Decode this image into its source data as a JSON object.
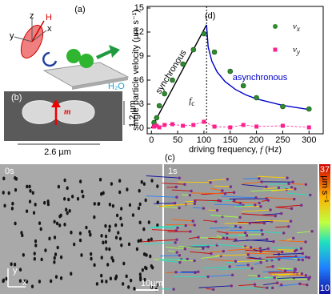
{
  "panel_a": {
    "label": "(a)",
    "axis_x": "x",
    "axis_y": "y",
    "axis_z": "z",
    "field": "H",
    "medium": "H₂O"
  },
  "panel_b": {
    "label": "(b)",
    "moment": "m",
    "height": "1.2 µm",
    "width": "2.6 µm"
  },
  "panel_c": {
    "label": "(c)",
    "frames": [
      "0s",
      "1s"
    ],
    "scale_bar": "10µm",
    "axis_x": "x",
    "axis_y": "y",
    "colorbar": {
      "max": 37,
      "min": 10,
      "unit": "µm s⁻¹"
    }
  },
  "chart_data": {
    "type": "scatter",
    "label": "(d)",
    "xlabel": [
      "driving frequency, ",
      "f",
      " (Hz)"
    ],
    "ylabel": "single particle velocity (µm s⁻¹)",
    "xlim": [
      -8,
      327
    ],
    "xticks": [
      0,
      50,
      100,
      150,
      200,
      250,
      300
    ],
    "ylim": [
      -0.7,
      15.2
    ],
    "yticks": [
      0,
      3,
      6,
      9,
      12,
      15
    ],
    "legend": "upper right",
    "series": [
      {
        "name": "v",
        "name_sub": "x",
        "color": "#2e8b2e",
        "marker": "circle",
        "x": [
          5,
          10,
          15,
          25,
          40,
          60,
          80,
          100,
          120,
          150,
          175,
          200,
          250,
          300
        ],
        "values": [
          0.7,
          1.3,
          2.8,
          4.3,
          6.0,
          8.0,
          9.8,
          11.8,
          9.5,
          7.1,
          5.3,
          3.8,
          2.7,
          2.4
        ]
      },
      {
        "name": "v",
        "name_sub": "y",
        "color": "#ff1f8f",
        "marker": "square",
        "x": [
          5,
          10,
          15,
          25,
          40,
          60,
          80,
          100,
          120,
          150,
          175,
          200,
          250,
          300
        ],
        "values": [
          0.2,
          0.3,
          0.1,
          0.4,
          0.5,
          0.3,
          0.4,
          0.8,
          0.2,
          0.1,
          0.4,
          0.2,
          0.3,
          0.1
        ]
      }
    ],
    "fits": [
      {
        "color": "#000000",
        "x": [
          0,
          105
        ],
        "values": [
          0,
          12.9
        ]
      },
      {
        "color": "#0000cc",
        "x": [
          105,
          108,
          115,
          125,
          140,
          160,
          180,
          200,
          250,
          300
        ],
        "values": [
          12.9,
          10.16,
          8.37,
          7.03,
          5.83,
          4.83,
          4.15,
          3.66,
          2.84,
          2.33
        ]
      }
    ],
    "critical": {
      "text": "f",
      "sub": "c",
      "x": 105
    },
    "sync_label": "synchronous",
    "async_label": "asynchronous"
  }
}
